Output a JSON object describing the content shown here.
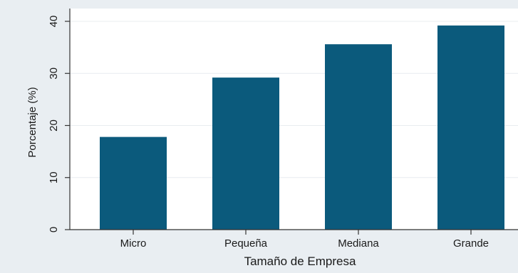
{
  "chart_data": {
    "type": "bar",
    "title": "",
    "xlabel": "Tamaño de Empresa",
    "ylabel": "Porcentaje (%)",
    "categories": [
      "Micro",
      "Pequeña",
      "Mediana",
      "Grande"
    ],
    "values": [
      17.8,
      29.2,
      35.6,
      39.2
    ],
    "ylim": [
      0,
      40
    ],
    "yticks": [
      "0",
      "10",
      "20",
      "30",
      "40"
    ],
    "grid": "horizontal",
    "legend": "none",
    "colors": {
      "bar": "#0b5a7c",
      "plot_background": "#ffffff",
      "outer_background": "#e9eef2",
      "grid": "#e8ecef"
    }
  }
}
